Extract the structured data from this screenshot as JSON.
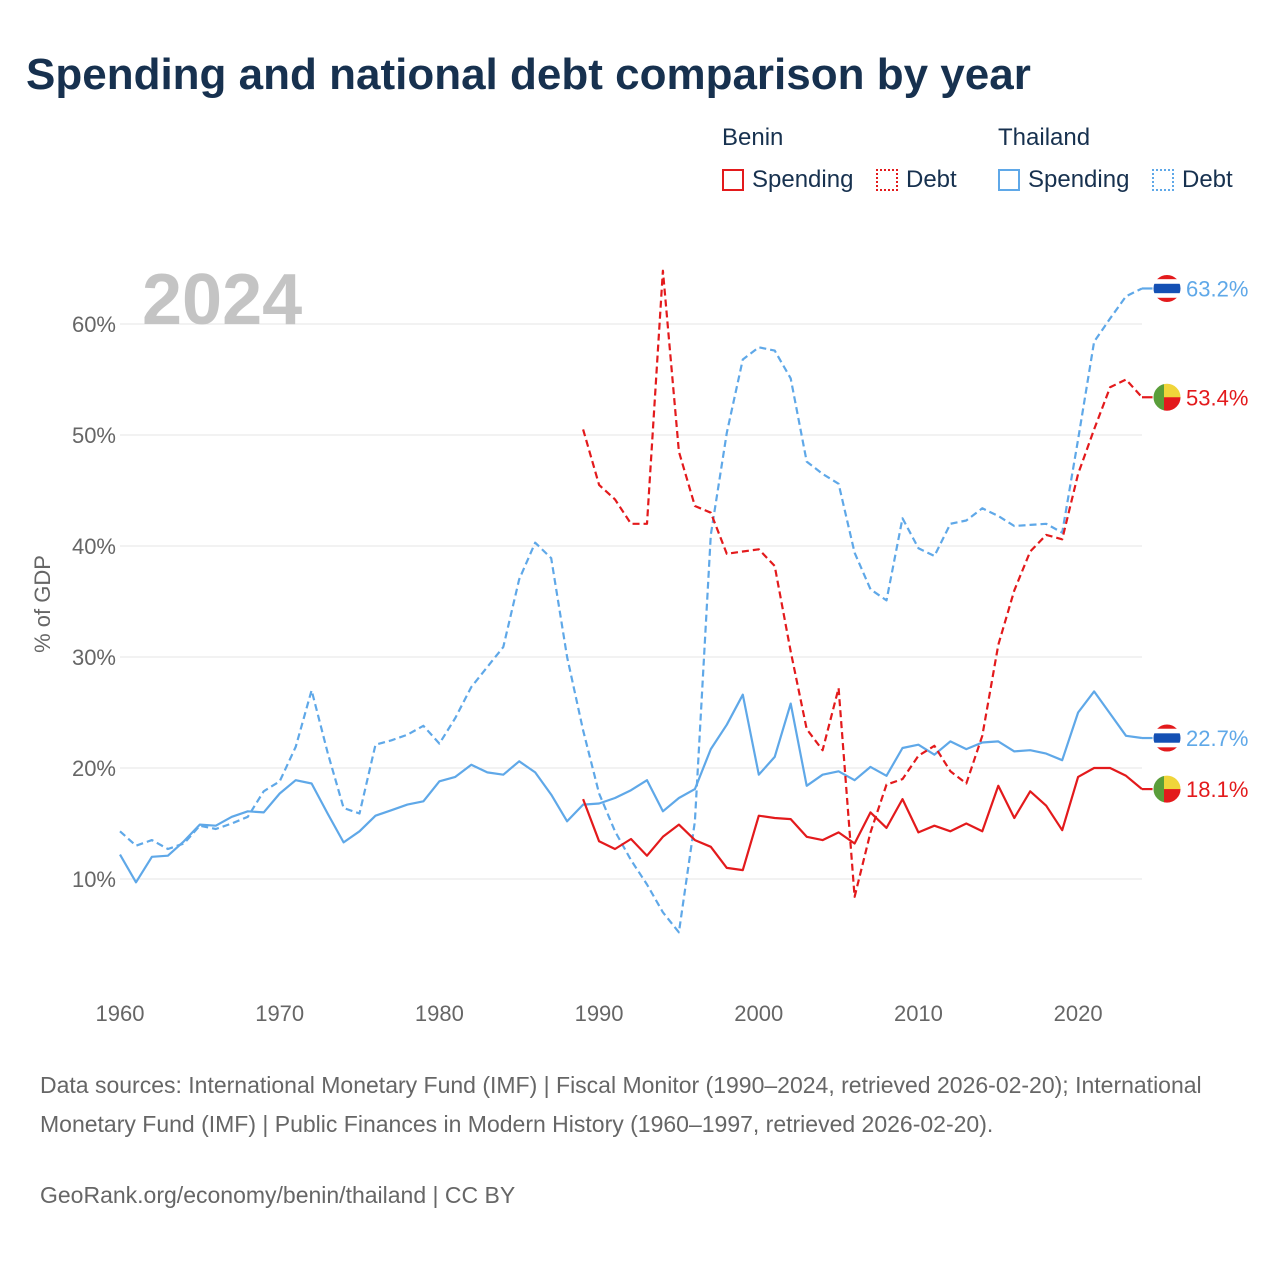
{
  "title": "Spending and national debt comparison by year",
  "legend": {
    "groups": [
      {
        "country": "Benin",
        "color": "#e31a1c",
        "items": [
          {
            "label": "Spending",
            "style": "solid"
          },
          {
            "label": "Debt",
            "style": "dotted"
          }
        ]
      },
      {
        "country": "Thailand",
        "color": "#5fa8e8",
        "items": [
          {
            "label": "Spending",
            "style": "solid"
          },
          {
            "label": "Debt",
            "style": "dotted"
          }
        ]
      }
    ]
  },
  "chart_data": {
    "type": "line",
    "year_watermark": "2024",
    "ylabel": "% of GDP",
    "xlim": [
      1960,
      2024
    ],
    "ylim": [
      0,
      70
    ],
    "x_ticks": [
      1960,
      1970,
      1980,
      1990,
      2000,
      2010,
      2020
    ],
    "y_ticks": [
      10,
      20,
      30,
      40,
      50,
      60
    ],
    "y_tick_labels": [
      "10%",
      "20%",
      "30%",
      "40%",
      "50%",
      "60%"
    ],
    "series": [
      {
        "name": "Thailand Spending",
        "country": "Thailand",
        "metric": "Spending",
        "color": "#5fa8e8",
        "dash": "solid",
        "x": [
          1960,
          1961,
          1962,
          1963,
          1964,
          1965,
          1966,
          1967,
          1968,
          1969,
          1970,
          1971,
          1972,
          1973,
          1974,
          1975,
          1976,
          1977,
          1978,
          1979,
          1980,
          1981,
          1982,
          1983,
          1984,
          1985,
          1986,
          1987,
          1988,
          1989,
          1990,
          1991,
          1992,
          1993,
          1994,
          1995,
          1996,
          1997,
          1998,
          1999,
          2000,
          2001,
          2002,
          2003,
          2004,
          2005,
          2006,
          2007,
          2008,
          2009,
          2010,
          2011,
          2012,
          2013,
          2014,
          2015,
          2016,
          2017,
          2018,
          2019,
          2020,
          2021,
          2022,
          2023,
          2024
        ],
        "values": [
          12.2,
          9.7,
          12.0,
          12.1,
          13.4,
          14.9,
          14.8,
          15.6,
          16.1,
          16.0,
          17.7,
          18.9,
          18.6,
          15.9,
          13.3,
          14.3,
          15.7,
          16.2,
          16.7,
          17.0,
          18.8,
          19.2,
          20.3,
          19.6,
          19.4,
          20.6,
          19.6,
          17.6,
          15.2,
          16.7,
          16.8,
          17.3,
          18.0,
          18.9,
          16.1,
          17.3,
          18.1,
          21.7,
          23.9,
          26.6,
          19.4,
          21.0,
          25.8,
          18.4,
          19.4,
          19.7,
          18.9,
          20.1,
          19.3,
          21.8,
          22.1,
          21.2,
          22.4,
          21.7,
          22.3,
          22.4,
          21.5,
          21.6,
          21.3,
          20.7,
          25.0,
          26.9,
          24.9,
          22.9,
          22.7
        ]
      },
      {
        "name": "Thailand Debt",
        "country": "Thailand",
        "metric": "Debt",
        "color": "#5fa8e8",
        "dash": "dashed",
        "x": [
          1960,
          1961,
          1962,
          1963,
          1964,
          1965,
          1966,
          1967,
          1968,
          1969,
          1970,
          1971,
          1972,
          1973,
          1974,
          1975,
          1976,
          1977,
          1978,
          1979,
          1980,
          1981,
          1982,
          1983,
          1984,
          1985,
          1986,
          1987,
          1988,
          1989,
          1990,
          1991,
          1992,
          1993,
          1994,
          1995,
          1996,
          1997,
          1998,
          1999,
          2000,
          2001,
          2002,
          2003,
          2004,
          2005,
          2006,
          2007,
          2008,
          2009,
          2010,
          2011,
          2012,
          2013,
          2014,
          2015,
          2016,
          2017,
          2018,
          2019,
          2020,
          2021,
          2022,
          2023,
          2024
        ],
        "values": [
          14.3,
          13.0,
          13.5,
          12.7,
          13.2,
          14.8,
          14.5,
          15.0,
          15.6,
          17.9,
          18.8,
          21.9,
          27.0,
          21.4,
          16.4,
          15.9,
          22.1,
          22.5,
          23.0,
          23.8,
          22.2,
          24.5,
          27.3,
          29.1,
          30.9,
          37.0,
          40.3,
          38.9,
          30.0,
          23.4,
          17.7,
          14.3,
          11.7,
          9.5,
          7.0,
          5.2,
          15.2,
          41.0,
          50.2,
          56.8,
          57.9,
          57.6,
          55.1,
          47.6,
          46.5,
          45.6,
          39.4,
          36.1,
          35.1,
          42.5,
          39.8,
          39.1,
          42.0,
          42.3,
          43.4,
          42.7,
          41.8,
          41.9,
          42.0,
          41.2,
          49.6,
          58.4,
          60.5,
          62.5,
          63.2
        ]
      },
      {
        "name": "Benin Spending",
        "country": "Benin",
        "metric": "Spending",
        "color": "#e31a1c",
        "dash": "solid",
        "x": [
          1989,
          1990,
          1991,
          1992,
          1993,
          1994,
          1995,
          1996,
          1997,
          1998,
          1999,
          2000,
          2001,
          2002,
          2003,
          2004,
          2005,
          2006,
          2007,
          2008,
          2009,
          2010,
          2011,
          2012,
          2013,
          2014,
          2015,
          2016,
          2017,
          2018,
          2019,
          2020,
          2021,
          2022,
          2023,
          2024
        ],
        "values": [
          17.2,
          13.4,
          12.7,
          13.6,
          12.1,
          13.8,
          14.9,
          13.5,
          12.9,
          11.0,
          10.8,
          15.7,
          15.5,
          15.4,
          13.8,
          13.5,
          14.2,
          13.2,
          16.0,
          14.6,
          17.2,
          14.2,
          14.8,
          14.3,
          15.0,
          14.3,
          18.4,
          15.5,
          17.9,
          16.6,
          14.4,
          19.2,
          20.0,
          20.0,
          19.3,
          18.1
        ]
      },
      {
        "name": "Benin Debt",
        "country": "Benin",
        "metric": "Debt",
        "color": "#e31a1c",
        "dash": "dashed",
        "x": [
          1989,
          1990,
          1991,
          1992,
          1993,
          1994,
          1995,
          1996,
          1997,
          1998,
          1999,
          2000,
          2001,
          2002,
          2003,
          2004,
          2005,
          2006,
          2007,
          2008,
          2009,
          2010,
          2011,
          2012,
          2013,
          2014,
          2015,
          2016,
          2017,
          2018,
          2019,
          2020,
          2021,
          2022,
          2023,
          2024
        ],
        "values": [
          50.5,
          45.5,
          44.2,
          42.0,
          42.0,
          64.8,
          48.5,
          43.6,
          43.0,
          39.3,
          39.5,
          39.7,
          38.2,
          30.5,
          23.5,
          21.6,
          27.2,
          8.4,
          14.2,
          18.5,
          19.0,
          21.1,
          22.0,
          19.7,
          18.6,
          22.9,
          31.1,
          36.0,
          39.5,
          41.0,
          40.6,
          46.5,
          50.5,
          54.3,
          55.0,
          53.4
        ]
      }
    ],
    "end_labels": [
      {
        "series": "Thailand Debt",
        "label": "63.2%",
        "value": 63.2,
        "flag": "thailand"
      },
      {
        "series": "Benin Debt",
        "label": "53.4%",
        "value": 53.4,
        "flag": "benin"
      },
      {
        "series": "Thailand Spending",
        "label": "22.7%",
        "value": 22.7,
        "flag": "thailand"
      },
      {
        "series": "Benin Spending",
        "label": "18.1%",
        "value": 18.1,
        "flag": "benin"
      }
    ]
  },
  "footer": {
    "sources": "Data sources: International Monetary Fund (IMF) | Fiscal Monitor (1990–2024, retrieved 2026-02-20); International Monetary Fund (IMF) | Public Finances in Modern History (1960–1997, retrieved 2026-02-20).",
    "credit": "GeoRank.org/economy/benin/thailand | CC BY"
  },
  "colors": {
    "title": "#17314f",
    "axis_text": "#666666",
    "grid": "#e6e6e6",
    "watermark": "#c4c4c4",
    "benin_green": "#5a9e3a",
    "benin_yellow": "#f0d53a",
    "benin_red": "#e31a1c",
    "thai_red": "#e31a1c",
    "thai_blue": "#1450b4"
  }
}
